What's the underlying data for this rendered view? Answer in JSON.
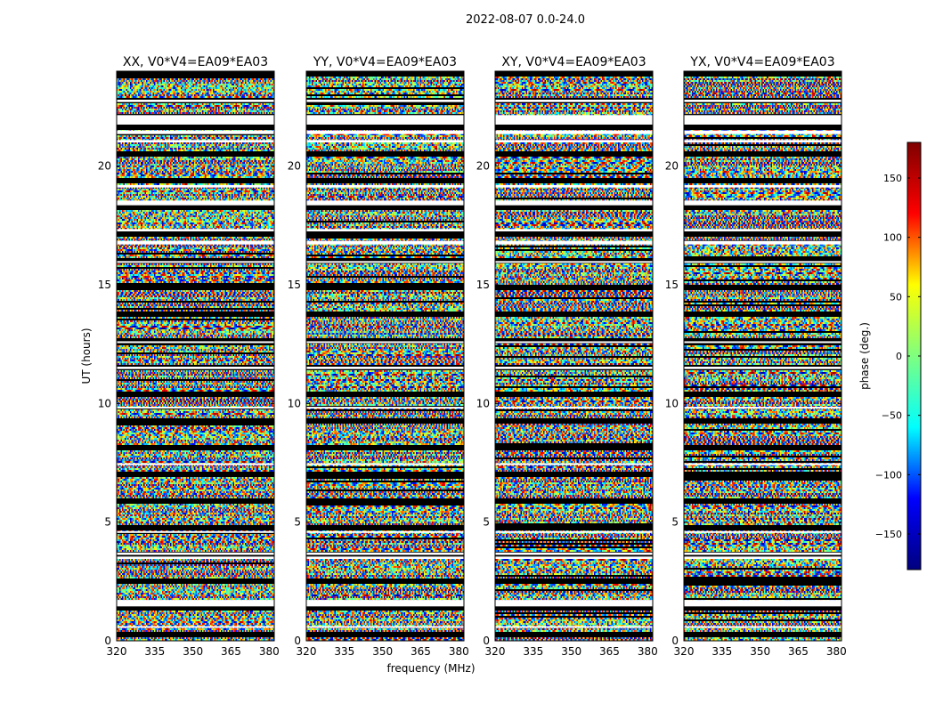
{
  "figure": {
    "suptitle": "2022-08-07 0.0-24.0",
    "xlabel": "frequency (MHz)",
    "ylabel": "UT (hours)"
  },
  "colorbar": {
    "label": "phase (deg.)",
    "range": [
      -180,
      180
    ],
    "ticks": [
      "150",
      "100",
      "50",
      "0",
      "−50",
      "−100",
      "−150"
    ],
    "tick_values": [
      150,
      100,
      50,
      0,
      -50,
      -100,
      -150
    ],
    "colormap": "jet",
    "stops": [
      "#00007f",
      "#0000ff",
      "#00ffff",
      "#7fff7f",
      "#ffff00",
      "#ff0000",
      "#7f0000"
    ]
  },
  "chart_data": {
    "type": "heatmap",
    "title": "2022-08-07 0.0-24.0",
    "xlabel": "frequency (MHz)",
    "ylabel": "UT (hours)",
    "xlim": [
      320,
      382
    ],
    "ylim": [
      0,
      24
    ],
    "x_ticks": [
      320,
      335,
      350,
      365,
      380
    ],
    "x_tick_labels": [
      "320",
      "335",
      "350",
      "365",
      "380"
    ],
    "y_ticks": [
      0,
      5,
      10,
      15,
      20
    ],
    "y_tick_labels": [
      "0",
      "5",
      "10",
      "15",
      "20"
    ],
    "value": "phase (deg.)",
    "value_range": [
      -180,
      180
    ],
    "panels": [
      {
        "title": "XX, V0*V4=EA09*EA03",
        "pol": "XX"
      },
      {
        "title": "YY, V0*V4=EA09*EA03",
        "pol": "YY"
      },
      {
        "title": "XY, V0*V4=EA09*EA03",
        "pol": "XY"
      },
      {
        "title": "YX, V0*V4=EA09*EA03",
        "pol": "YX"
      }
    ],
    "flagged_ut_gaps_hours": [
      [
        0.55,
        0.62
      ],
      [
        1.45,
        1.72
      ],
      [
        3.45,
        3.55
      ],
      [
        3.62,
        3.72
      ],
      [
        4.55,
        4.62
      ],
      [
        7.4,
        7.48
      ],
      [
        9.8,
        9.86
      ],
      [
        11.45,
        11.55
      ],
      [
        12.55,
        12.62
      ],
      [
        15.95,
        16.0
      ],
      [
        16.7,
        16.85
      ],
      [
        17.25,
        17.35
      ],
      [
        18.35,
        18.55
      ],
      [
        19.1,
        19.2
      ],
      [
        21.0,
        21.1
      ],
      [
        21.35,
        21.5
      ],
      [
        21.75,
        22.15
      ],
      [
        22.7,
        22.8
      ]
    ]
  }
}
